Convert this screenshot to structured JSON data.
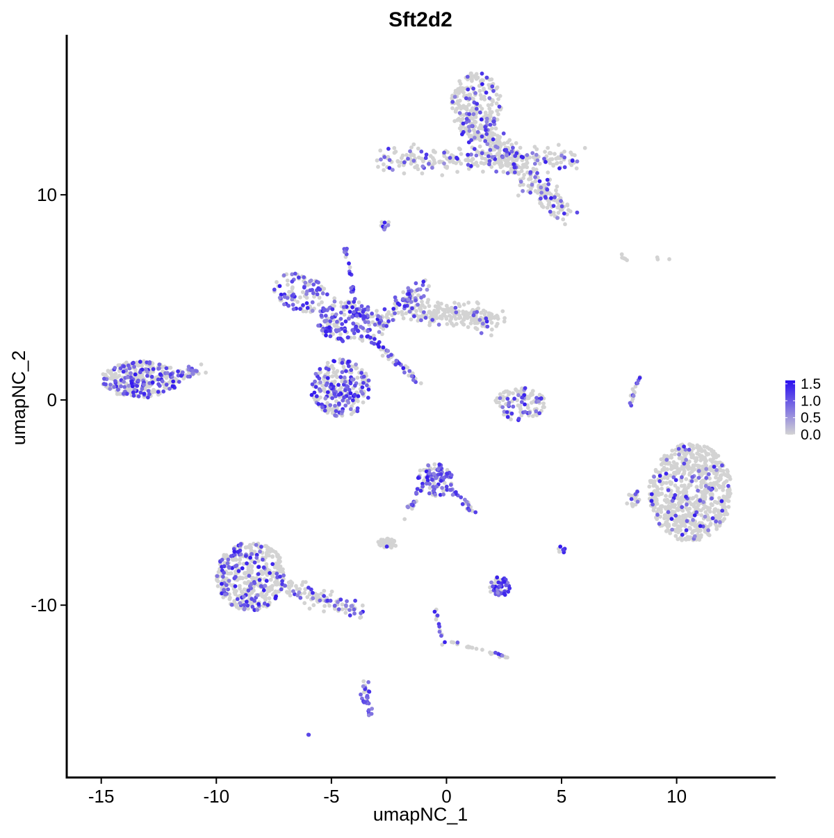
{
  "chart_data": {
    "type": "scatter",
    "title": "Sft2d2",
    "xlabel": "umapNC_1",
    "ylabel": "umapNC_2",
    "xlim": [
      -16.5,
      14.3
    ],
    "ylim": [
      -18.4,
      17.8
    ],
    "xticks": [
      -15,
      -10,
      -5,
      0,
      5,
      10
    ],
    "xtick_labels": [
      "-15",
      "-10",
      "-5",
      "0",
      "5",
      "10"
    ],
    "yticks": [
      -10,
      0,
      10
    ],
    "ytick_labels": [
      "-10",
      "0",
      "10"
    ],
    "grid": false,
    "legend_position": "right",
    "colors": {
      "low": "#d3d3d3",
      "high": "#2a0ff0"
    },
    "color_scale": {
      "min": 0.0,
      "max": 1.6,
      "ticks": [
        0.0,
        0.5,
        1.0,
        1.5
      ],
      "tick_labels": [
        "0.0",
        "0.5",
        "1.0",
        "1.5"
      ]
    },
    "clusters": [
      {
        "name": "top-right arm",
        "type": "ellipse",
        "cx": 1.3,
        "cy": 14.3,
        "rx": 1.1,
        "ry": 1.7,
        "angle": 0,
        "n": 230,
        "expr_frac": 0.22
      },
      {
        "name": "top-right band",
        "type": "line",
        "x1": -2.8,
        "y1": 11.7,
        "x2": 5.5,
        "y2": 11.8,
        "w": 0.6,
        "n": 260,
        "expr_frac": 0.25
      },
      {
        "name": "top-right lower",
        "type": "line",
        "x1": 1.5,
        "y1": 13.2,
        "x2": 5.2,
        "y2": 9.0,
        "w": 0.7,
        "n": 260,
        "expr_frac": 0.22
      },
      {
        "name": "top blob small",
        "type": "ellipse",
        "cx": -2.7,
        "cy": 8.6,
        "rx": 0.2,
        "ry": 0.3,
        "angle": 0,
        "n": 10,
        "expr_frac": 0.6
      },
      {
        "name": "center left wing",
        "type": "ellipse",
        "cx": -6.2,
        "cy": 5.2,
        "rx": 1.4,
        "ry": 0.9,
        "angle": -20,
        "n": 110,
        "expr_frac": 0.45
      },
      {
        "name": "center core",
        "type": "ellipse",
        "cx": -4.2,
        "cy": 3.8,
        "rx": 1.4,
        "ry": 1.0,
        "angle": 0,
        "n": 170,
        "expr_frac": 0.55
      },
      {
        "name": "center lower lobe",
        "type": "ellipse",
        "cx": -4.6,
        "cy": 0.6,
        "rx": 1.3,
        "ry": 1.4,
        "angle": 0,
        "n": 240,
        "expr_frac": 0.5
      },
      {
        "name": "center upper spike",
        "type": "line",
        "x1": -4.4,
        "y1": 7.4,
        "x2": -3.8,
        "y2": 3.5,
        "w": 0.15,
        "n": 30,
        "expr_frac": 0.7
      },
      {
        "name": "center diagonal arm",
        "type": "line",
        "x1": -3.2,
        "y1": 3.0,
        "x2": -1.2,
        "y2": 0.8,
        "w": 0.2,
        "n": 50,
        "expr_frac": 0.45
      },
      {
        "name": "center right arm",
        "type": "line",
        "x1": -3.0,
        "y1": 3.4,
        "x2": -1.0,
        "y2": 5.8,
        "w": 0.45,
        "n": 90,
        "expr_frac": 0.45
      },
      {
        "name": "center right extension",
        "type": "line",
        "x1": -1.5,
        "y1": 4.4,
        "x2": 2.1,
        "y2": 3.9,
        "w": 0.6,
        "n": 220,
        "expr_frac": 0.12
      },
      {
        "name": "far left cluster",
        "type": "ellipse",
        "cx": -13.3,
        "cy": 1.0,
        "rx": 1.7,
        "ry": 0.9,
        "angle": 0,
        "n": 300,
        "expr_frac": 0.35
      },
      {
        "name": "far left tail",
        "type": "line",
        "x1": -12.5,
        "y1": 1.3,
        "x2": -10.6,
        "y2": 1.4,
        "w": 0.35,
        "n": 40,
        "expr_frac": 0.55
      },
      {
        "name": "small center cluster",
        "type": "ellipse",
        "cx": 3.2,
        "cy": -0.2,
        "rx": 1.1,
        "ry": 0.8,
        "angle": 0,
        "n": 110,
        "expr_frac": 0.35
      },
      {
        "name": "right thin strip",
        "type": "line",
        "x1": 7.9,
        "y1": -0.3,
        "x2": 8.4,
        "y2": 1.1,
        "w": 0.12,
        "n": 16,
        "expr_frac": 0.5
      },
      {
        "name": "right large cluster",
        "type": "ellipse",
        "cx": 10.6,
        "cy": -4.5,
        "rx": 1.8,
        "ry": 2.4,
        "angle": 0,
        "n": 720,
        "expr_frac": 0.1
      },
      {
        "name": "right cluster tail",
        "type": "ellipse",
        "cx": 8.1,
        "cy": -4.8,
        "rx": 0.3,
        "ry": 0.5,
        "angle": 0,
        "n": 20,
        "expr_frac": 0.2
      },
      {
        "name": "mid-lower cluster",
        "type": "ellipse",
        "cx": -0.5,
        "cy": -3.9,
        "rx": 0.8,
        "ry": 0.8,
        "angle": 0,
        "n": 110,
        "expr_frac": 0.55
      },
      {
        "name": "mid-lower right arm",
        "type": "line",
        "x1": 0.1,
        "y1": -4.3,
        "x2": 1.3,
        "y2": -5.5,
        "w": 0.15,
        "n": 25,
        "expr_frac": 0.5
      },
      {
        "name": "mid-lower left arm",
        "type": "line",
        "x1": -1.1,
        "y1": -4.2,
        "x2": -1.8,
        "y2": -5.8,
        "w": 0.12,
        "n": 20,
        "expr_frac": 0.45
      },
      {
        "name": "lower left cluster",
        "type": "ellipse",
        "cx": -8.5,
        "cy": -8.6,
        "rx": 1.5,
        "ry": 1.7,
        "angle": 0,
        "n": 420,
        "expr_frac": 0.25
      },
      {
        "name": "lower left tail",
        "type": "line",
        "x1": -7.2,
        "y1": -9.0,
        "x2": -3.9,
        "y2": -10.3,
        "w": 0.45,
        "n": 100,
        "expr_frac": 0.3
      },
      {
        "name": "gray blob",
        "type": "ellipse",
        "cx": -2.6,
        "cy": -7.0,
        "rx": 0.45,
        "ry": 0.25,
        "angle": 0,
        "n": 40,
        "expr_frac": 0.02
      },
      {
        "name": "lower middle cluster",
        "type": "ellipse",
        "cx": 2.3,
        "cy": -9.1,
        "rx": 0.45,
        "ry": 0.5,
        "angle": 0,
        "n": 55,
        "expr_frac": 0.55
      },
      {
        "name": "lower middle strand",
        "type": "line",
        "x1": -0.5,
        "y1": -10.2,
        "x2": -0.1,
        "y2": -12.0,
        "w": 0.12,
        "n": 14,
        "expr_frac": 0.3
      },
      {
        "name": "lower middle branch",
        "type": "line",
        "x1": 0.2,
        "y1": -11.8,
        "x2": 2.7,
        "y2": -12.6,
        "w": 0.12,
        "n": 22,
        "expr_frac": 0.35
      },
      {
        "name": "bottom cluster",
        "type": "line",
        "x1": -3.6,
        "y1": -13.7,
        "x2": -3.4,
        "y2": -15.3,
        "w": 0.2,
        "n": 30,
        "expr_frac": 0.8
      },
      {
        "name": "right small cluster",
        "type": "ellipse",
        "cx": 5.0,
        "cy": -7.3,
        "rx": 0.2,
        "ry": 0.2,
        "angle": 0,
        "n": 8,
        "expr_frac": 0.7
      },
      {
        "name": "top-right sparse",
        "type": "line",
        "x1": 7.0,
        "y1": 6.9,
        "x2": 9.9,
        "y2": 6.8,
        "w": 0.15,
        "n": 8,
        "expr_frac": 0.0
      },
      {
        "name": "isolated point",
        "type": "ellipse",
        "cx": -6.0,
        "cy": -16.3,
        "rx": 0.05,
        "ry": 0.05,
        "angle": 0,
        "n": 2,
        "expr_frac": 0.5
      }
    ]
  }
}
